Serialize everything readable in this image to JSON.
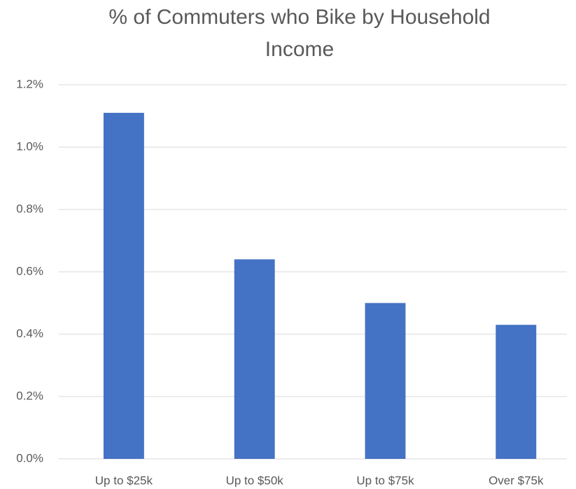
{
  "chart_data": {
    "type": "bar",
    "title": "% of Commuters who Bike by Household Income",
    "categories": [
      "Up to $25k",
      "Up to $50k",
      "Up to $75k",
      "Over $75k"
    ],
    "values": [
      1.11,
      0.64,
      0.5,
      0.43
    ],
    "color": "#4472c4",
    "ylim": [
      0,
      1.2
    ],
    "yticks": [
      {
        "value": 0,
        "label": "0.0%"
      },
      {
        "value": 0.2,
        "label": "0.2%"
      },
      {
        "value": 0.4,
        "label": "0.4%"
      },
      {
        "value": 0.6,
        "label": "0.6%"
      },
      {
        "value": 0.8,
        "label": "0.8%"
      },
      {
        "value": 1.0,
        "label": "1.0%"
      },
      {
        "value": 1.2,
        "label": "1.2%"
      }
    ],
    "grid": true
  }
}
